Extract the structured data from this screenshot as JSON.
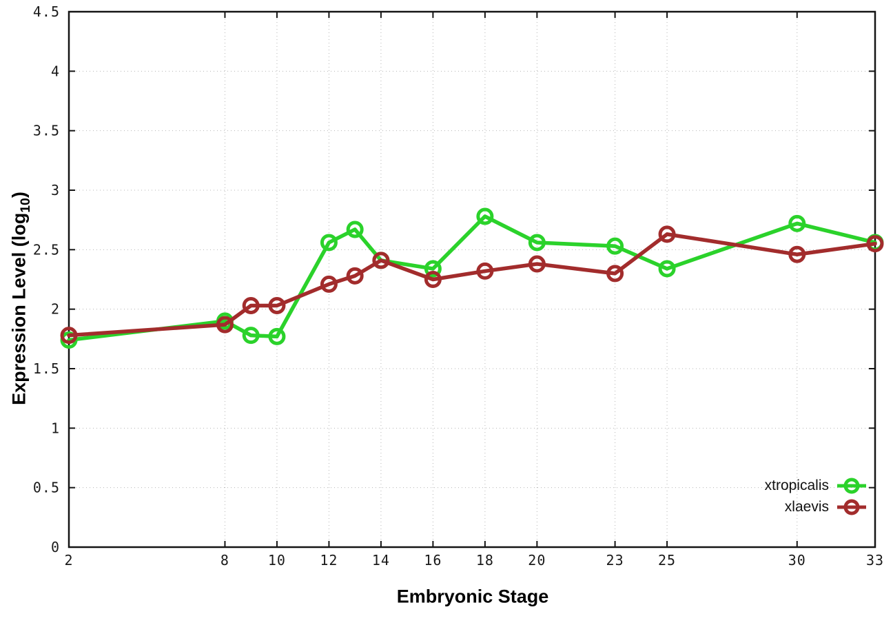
{
  "chart_data": {
    "type": "line",
    "title": "",
    "xlabel": "Embryonic Stage",
    "ylabel": "Expression Level (log10)",
    "ylabel_parts": {
      "main": "Expression Level (log",
      "sub": "10",
      "close": ")"
    },
    "x": [
      2,
      8,
      9,
      10,
      12,
      13,
      14,
      16,
      18,
      20,
      23,
      25,
      30,
      33
    ],
    "series": [
      {
        "name": "xtropicalis",
        "color": "#2bd22b",
        "values": [
          1.74,
          1.9,
          1.78,
          1.77,
          2.56,
          2.67,
          2.41,
          2.34,
          2.78,
          2.56,
          2.53,
          2.34,
          2.72,
          2.56
        ]
      },
      {
        "name": "xlaevis",
        "color": "#a22c2c",
        "values": [
          1.78,
          1.87,
          2.03,
          2.03,
          2.21,
          2.28,
          2.41,
          2.25,
          2.32,
          2.38,
          2.3,
          2.63,
          2.46,
          2.55
        ]
      }
    ],
    "xticks": [
      2,
      8,
      10,
      12,
      14,
      16,
      18,
      20,
      23,
      25,
      30,
      33
    ],
    "xtick_labels": [
      "2",
      "8",
      "10",
      "12",
      "14",
      "16",
      "18",
      "20",
      "23",
      "25",
      "30",
      "33"
    ],
    "yticks": [
      0,
      0.5,
      1,
      1.5,
      2,
      2.5,
      3,
      3.5,
      4,
      4.5
    ],
    "ytick_labels": [
      "0",
      "0.5",
      "1",
      "1.5",
      "2",
      "2.5",
      "3",
      "3.5",
      "4",
      "4.5"
    ],
    "xlim": [
      2,
      33
    ],
    "ylim": [
      0,
      4.5
    ],
    "grid": true,
    "grid_style": "dotted",
    "legend_position": "bottom-right",
    "marker": "open-circle"
  }
}
